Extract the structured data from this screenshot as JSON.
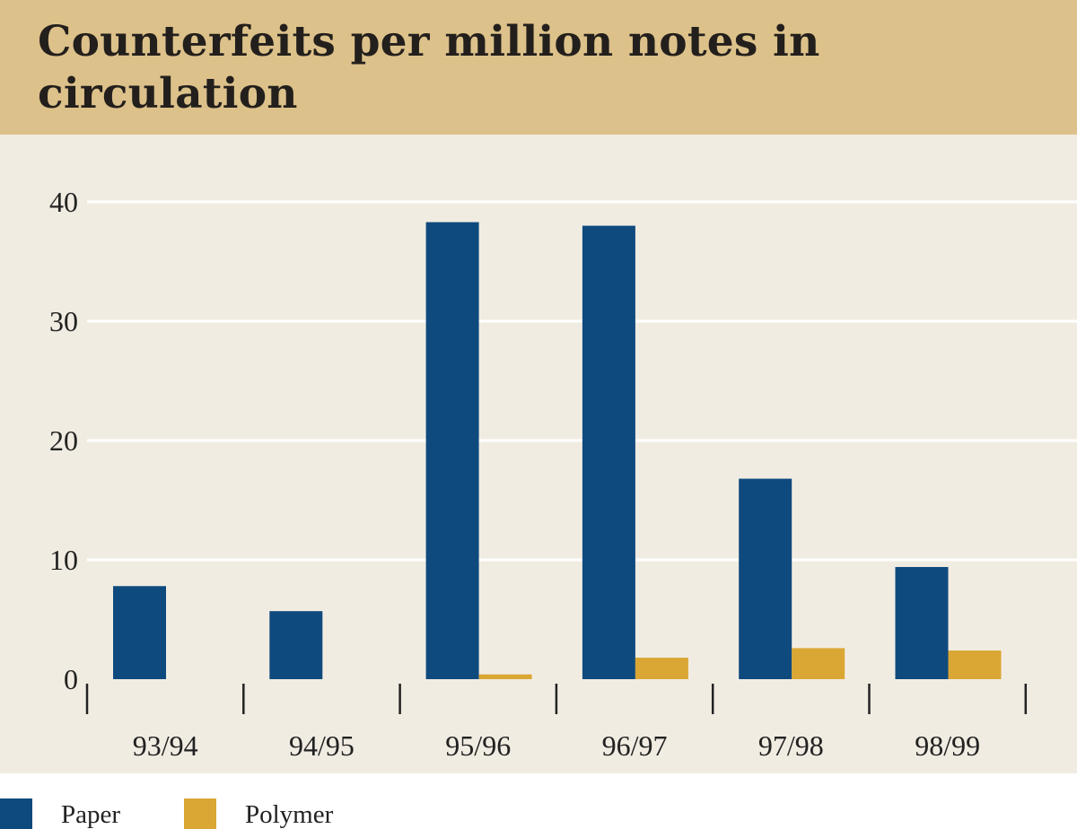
{
  "title": "Counterfeits per million notes in circulation",
  "colors": {
    "header_bg": "#dcc18a",
    "plot_bg": "#f1ece2",
    "paper": "#0f4a7e",
    "polymer": "#daa634",
    "gridline": "#ffffff"
  },
  "legend": [
    {
      "label": "Paper",
      "color": "#0f4a7e"
    },
    {
      "label": "Polymer",
      "color": "#daa634"
    }
  ],
  "chart_data": {
    "type": "bar",
    "title": "Counterfeits per million notes in circulation",
    "xlabel": "",
    "ylabel": "",
    "categories": [
      "93/94",
      "94/95",
      "95/96",
      "96/97",
      "97/98",
      "98/99"
    ],
    "series": [
      {
        "name": "Paper",
        "values": [
          7.8,
          5.7,
          38.3,
          38.0,
          16.8,
          9.4
        ]
      },
      {
        "name": "Polymer",
        "values": [
          0,
          0,
          0.4,
          1.8,
          2.6,
          2.4
        ]
      }
    ],
    "ylim": [
      0,
      40
    ],
    "yticks": [
      0,
      10,
      20,
      30,
      40
    ],
    "grid": true,
    "legend_position": "bottom-left"
  }
}
